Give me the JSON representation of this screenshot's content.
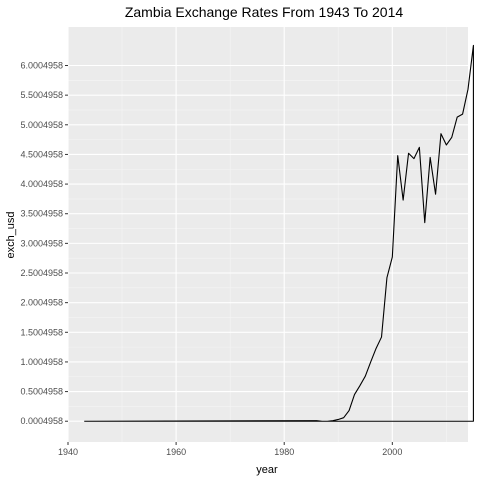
{
  "chart_data": {
    "type": "line",
    "title": "Zambia Exchange Rates From 1943 To 2014",
    "xlabel": "year",
    "ylabel": "exch_usd",
    "xlim": [
      1940,
      2014
    ],
    "ylim": [
      -0.35,
      6.65
    ],
    "x_ticks": [
      1940,
      1960,
      1980,
      2000
    ],
    "x_tick_labels": [
      "1940",
      "1960",
      "1980",
      "2000"
    ],
    "y_ticks": [
      0.0004958,
      0.5004958,
      1.0004958,
      1.5004958,
      2.0004958,
      2.5004958,
      3.0004958,
      3.5004958,
      4.0004958,
      4.5004958,
      5.0004958,
      5.5004958,
      6.0004958
    ],
    "y_tick_labels": [
      "0.0004958",
      "0.5004958",
      "1.0004958",
      "1.5004958",
      "2.0004958",
      "2.5004958",
      "3.0004958",
      "3.5004958",
      "4.0004958",
      "4.5004958",
      "5.0004958",
      "5.5004958",
      "6.0004958"
    ],
    "background": "#ebebeb",
    "grid": true,
    "line_color": "#000000",
    "series": [
      {
        "points": [
          [
            1943,
            0.0
          ],
          [
            1986,
            0.01
          ],
          [
            1987,
            0.0
          ],
          [
            1988,
            0.0
          ],
          [
            1989,
            0.01
          ],
          [
            1990,
            0.03
          ],
          [
            1991,
            0.06
          ],
          [
            1992,
            0.18
          ],
          [
            1993,
            0.45
          ],
          [
            1994,
            0.6
          ],
          [
            1995,
            0.76
          ],
          [
            1996,
            1.0
          ],
          [
            1997,
            1.23
          ],
          [
            1998,
            1.42
          ],
          [
            1999,
            2.42
          ],
          [
            2000,
            2.77
          ],
          [
            2001,
            4.48
          ],
          [
            2002,
            3.73
          ],
          [
            2003,
            4.52
          ],
          [
            2004,
            4.43
          ],
          [
            2005,
            4.62
          ],
          [
            2006,
            3.35
          ],
          [
            2007,
            4.45
          ],
          [
            2008,
            3.83
          ],
          [
            2009,
            4.85
          ],
          [
            2010,
            4.66
          ],
          [
            2011,
            4.79
          ],
          [
            2012,
            5.13
          ],
          [
            2013,
            5.18
          ],
          [
            2014,
            5.6
          ],
          [
            2015,
            6.34
          ],
          [
            2015,
            0.0
          ],
          [
            1943,
            0.0
          ]
        ]
      }
    ]
  }
}
